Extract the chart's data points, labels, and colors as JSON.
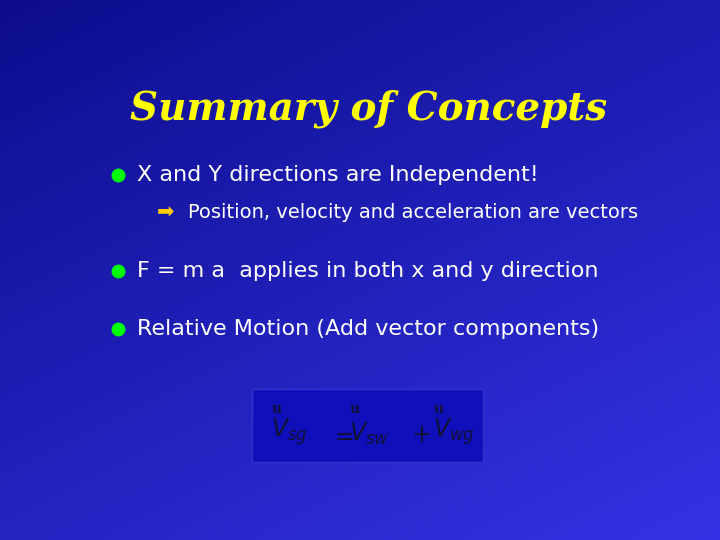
{
  "title": "Summary of Concepts",
  "title_color": "#FFFF00",
  "title_fontsize": 28,
  "background_color": "#1c1ccc",
  "bullet_color": "#00ff00",
  "text_color": "#ffffff",
  "bullet1_text": "X and Y directions are Independent!",
  "sub_bullet_text": "Position, velocity and acceleration are vectors",
  "sub_arrow_color": "#ffcc00",
  "bullet2_text": "F = m a  applies in both x and y direction",
  "bullet3_text": "Relative Motion (Add vector components)",
  "equation_box_color": "#1010bb",
  "equation_text_color": "#111133"
}
